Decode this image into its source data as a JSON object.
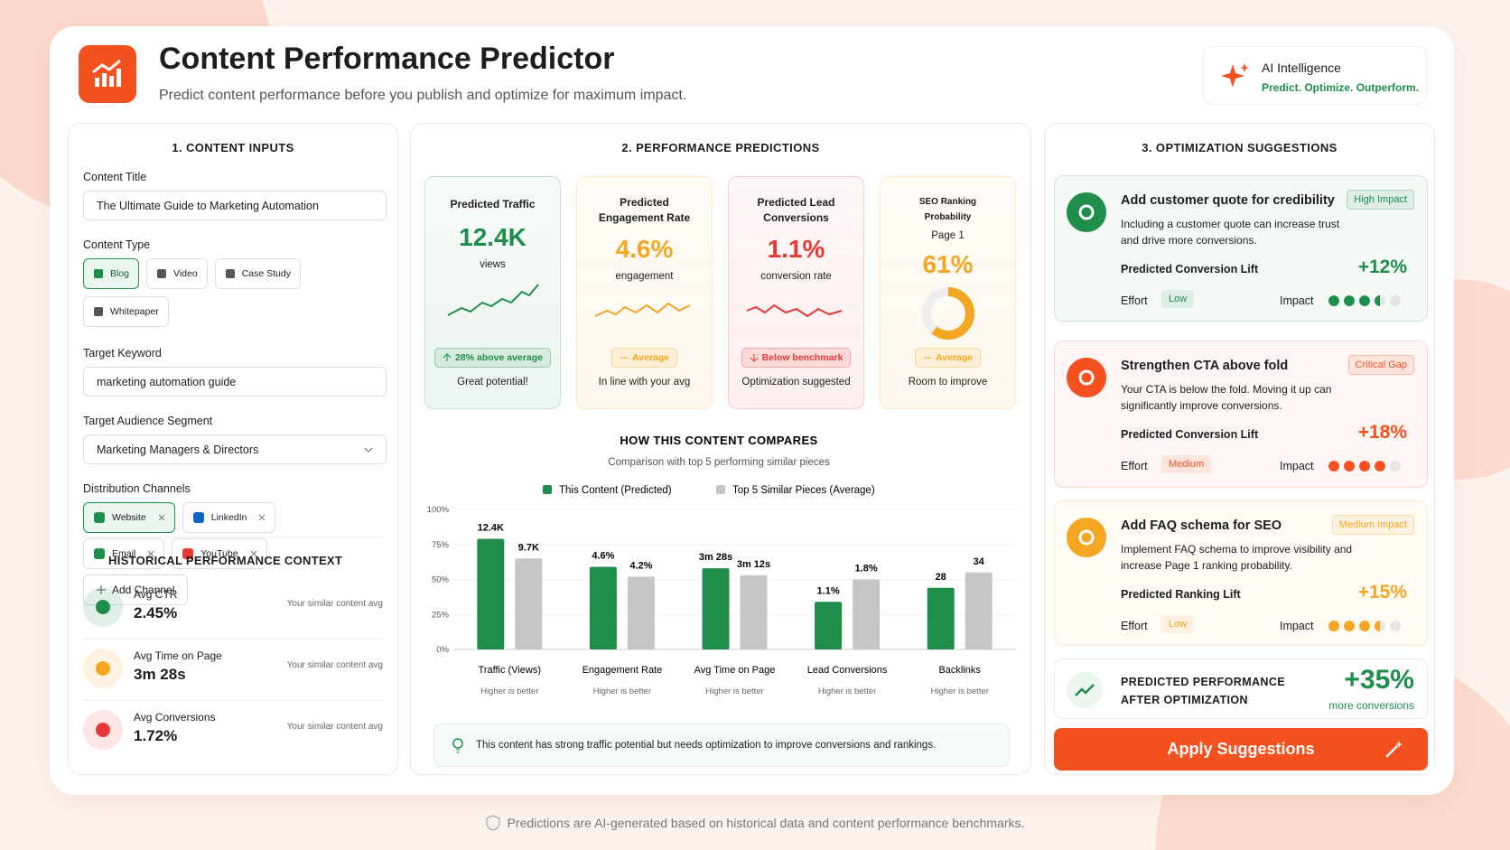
{
  "header": {
    "title": "Content Performance Predictor",
    "subtitle": "Predict content performance before you publish and optimize for maximum impact.",
    "badge_title": "AI Intelligence",
    "badge_tagline": "Predict. Optimize. Outperform."
  },
  "inputs": {
    "heading": "1. CONTENT INPUTS",
    "content_title": {
      "label": "Content Title",
      "value": "The Ultimate Guide to Marketing Automation"
    },
    "content_type": {
      "label": "Content Type",
      "options": [
        "Blog",
        "Video",
        "Case Study",
        "Whitepaper"
      ]
    },
    "keyword": {
      "label": "Target Keyword",
      "value": "marketing automation guide"
    },
    "audience": {
      "label": "Target Audience Segment",
      "value": "Marketing Managers & Directors"
    },
    "channels": {
      "label": "Distribution Channels",
      "items": [
        "Website",
        "LinkedIn",
        "Email",
        "YouTube"
      ],
      "add": "Add Channel"
    }
  },
  "history": {
    "heading": "HISTORICAL PERFORMANCE CONTEXT",
    "items": [
      {
        "label": "Avg CTR",
        "value": "2.45%",
        "note": "Your similar content avg",
        "color": "#1e8e4a"
      },
      {
        "label": "Avg Time on Page",
        "value": "3m 28s",
        "note": "Your similar content avg",
        "color": "#f5a623"
      },
      {
        "label": "Avg Conversions",
        "value": "1.72%",
        "note": "Your similar content avg",
        "color": "#e53935"
      }
    ]
  },
  "predictions": {
    "heading": "2. PERFORMANCE PREDICTIONS",
    "cards": [
      {
        "title": "Predicted Traffic",
        "value": "12.4K",
        "unit": "views",
        "badge": "28% above average",
        "note": "Great potential!",
        "color": "#1e8e4a",
        "trend": "up"
      },
      {
        "title": "Predicted Engagement Rate",
        "value": "4.6%",
        "unit": "engagement",
        "badge": "Average",
        "note": "In line with your avg",
        "color": "#f5a623",
        "trend": "flat"
      },
      {
        "title": "Predicted Lead Conversions",
        "value": "1.1%",
        "unit": "conversion rate",
        "badge": "Below benchmark",
        "note": "Optimization suggested",
        "color": "#e53935",
        "trend": "down"
      },
      {
        "title": "SEO Ranking Probability",
        "subtitle": "Page 1",
        "value": "61%",
        "badge": "Average",
        "note": "Room to improve",
        "color": "#f5a623",
        "trend": "flat"
      }
    ],
    "insight": "This content has strong traffic potential but needs optimization to improve conversions and rankings."
  },
  "chart_data": {
    "type": "bar",
    "title": "HOW THIS CONTENT COMPARES",
    "subtitle": "Comparison with top 5 performing similar pieces",
    "categories": [
      "Traffic (Views)",
      "Engagement Rate",
      "Avg Time on Page",
      "Lead Conversions",
      "Backlinks"
    ],
    "category_notes": [
      "Higher is better",
      "Higher is better",
      "Higher is better",
      "Higher is better",
      "Higher is better"
    ],
    "series": [
      {
        "name": "This Content (Predicted)",
        "color": "#1e8e4a",
        "values": [
          79,
          59,
          58,
          34,
          44
        ],
        "labels": [
          "12.4K",
          "4.6%",
          "3m 28s",
          "1.1%",
          "28"
        ]
      },
      {
        "name": "Top 5 Similar Pieces (Average)",
        "color": "#c6c6c6",
        "values": [
          65,
          52,
          53,
          50,
          55
        ],
        "labels": [
          "9.7K",
          "4.2%",
          "3m 12s",
          "1.8%",
          "34"
        ]
      }
    ],
    "ylim": [
      0,
      100
    ],
    "yticks": [
      {
        "value": 0,
        "label": "0%"
      },
      {
        "value": 25,
        "label": "25%"
      },
      {
        "value": 50,
        "label": "50%"
      },
      {
        "value": 75,
        "label": "75%"
      },
      {
        "value": 100,
        "label": "100%"
      }
    ],
    "grid": true
  },
  "suggestions": {
    "heading": "3. OPTIMIZATION SUGGESTIONS",
    "items": [
      {
        "title": "Add customer quote for credibility",
        "tag": "High Impact",
        "color": "#1e8e4a",
        "desc": "Including a customer quote can increase trust and drive more conversions.",
        "lift_label": "Predicted Conversion Lift",
        "lift": "+12%",
        "effort_label": "Effort",
        "effort": "Low",
        "impact_label": "Impact",
        "impact": 3.5
      },
      {
        "title": "Strengthen CTA above fold",
        "tag": "Critical Gap",
        "color": "#f4511e",
        "desc": "Your CTA is below the fold. Moving it up can significantly improve conversions.",
        "lift_label": "Predicted Conversion Lift",
        "lift": "+18%",
        "effort_label": "Effort",
        "effort": "Medium",
        "impact_label": "Impact",
        "impact": 4
      },
      {
        "title": "Add FAQ schema for SEO",
        "tag": "Medium Impact",
        "color": "#f5a623",
        "desc": "Implement FAQ schema to improve visibility and increase Page 1 ranking probability.",
        "lift_label": "Predicted Ranking Lift",
        "lift": "+15%",
        "effort_label": "Effort",
        "effort": "Low",
        "impact_label": "Impact",
        "impact": 3.5
      }
    ],
    "summary": {
      "title": "PREDICTED PERFORMANCE AFTER OPTIMIZATION",
      "value": "+35%",
      "note": "more conversions"
    },
    "button": "Apply Suggestions"
  },
  "footer": "Predictions are AI-generated based on historical data and content performance benchmarks."
}
